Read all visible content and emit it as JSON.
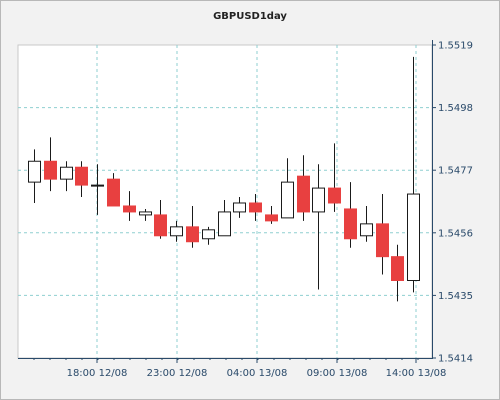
{
  "chart_data": {
    "type": "candlestick",
    "title": "GBPUSD1day",
    "xlabel": "",
    "ylabel": "",
    "ylim": [
      1.5414,
      1.5519
    ],
    "yticks": [
      "1.5519",
      "1.5498",
      "1.5477",
      "1.5456",
      "1.5435",
      "1.5414"
    ],
    "xticks": [
      "18:00 12/08",
      "23:00 12/08",
      "04:00 13/08",
      "09:00 13/08",
      "14:00 13/08"
    ],
    "grid": true,
    "colors": {
      "up": "#ffffff",
      "down": "#e84040",
      "outline": "#1a1a1a",
      "grid": "#8fcfd0",
      "axis": "#2a4a6a"
    },
    "series": [
      {
        "candles": [
          {
            "o": 1.5473,
            "h": 1.5484,
            "l": 1.5466,
            "c": 1.548
          },
          {
            "o": 1.548,
            "h": 1.5488,
            "l": 1.547,
            "c": 1.5474
          },
          {
            "o": 1.5474,
            "h": 1.548,
            "l": 1.547,
            "c": 1.5478
          },
          {
            "o": 1.5478,
            "h": 1.548,
            "l": 1.5468,
            "c": 1.5472
          },
          {
            "o": 1.5472,
            "h": 1.5479,
            "l": 1.5462,
            "c": 1.5472
          },
          {
            "o": 1.5474,
            "h": 1.5476,
            "l": 1.5465,
            "c": 1.5465
          },
          {
            "o": 1.5465,
            "h": 1.547,
            "l": 1.546,
            "c": 1.5463
          },
          {
            "o": 1.5462,
            "h": 1.5464,
            "l": 1.546,
            "c": 1.5463
          },
          {
            "o": 1.5462,
            "h": 1.5467,
            "l": 1.5454,
            "c": 1.5455
          },
          {
            "o": 1.5455,
            "h": 1.546,
            "l": 1.5453,
            "c": 1.5458
          },
          {
            "o": 1.5458,
            "h": 1.5465,
            "l": 1.5451,
            "c": 1.5453
          },
          {
            "o": 1.5454,
            "h": 1.5458,
            "l": 1.5452,
            "c": 1.5457
          },
          {
            "o": 1.5455,
            "h": 1.5467,
            "l": 1.5455,
            "c": 1.5463
          },
          {
            "o": 1.5463,
            "h": 1.5468,
            "l": 1.5461,
            "c": 1.5466
          },
          {
            "o": 1.5466,
            "h": 1.5469,
            "l": 1.546,
            "c": 1.5463
          },
          {
            "o": 1.5462,
            "h": 1.5465,
            "l": 1.5459,
            "c": 1.546
          },
          {
            "o": 1.5461,
            "h": 1.5481,
            "l": 1.5461,
            "c": 1.5473
          },
          {
            "o": 1.5475,
            "h": 1.5482,
            "l": 1.546,
            "c": 1.5463
          },
          {
            "o": 1.5463,
            "h": 1.5479,
            "l": 1.5437,
            "c": 1.5471
          },
          {
            "o": 1.5471,
            "h": 1.5486,
            "l": 1.5463,
            "c": 1.5466
          },
          {
            "o": 1.5464,
            "h": 1.5473,
            "l": 1.5451,
            "c": 1.5454
          },
          {
            "o": 1.5455,
            "h": 1.5465,
            "l": 1.5453,
            "c": 1.5459
          },
          {
            "o": 1.5459,
            "h": 1.5469,
            "l": 1.5442,
            "c": 1.5448
          },
          {
            "o": 1.5448,
            "h": 1.5452,
            "l": 1.5433,
            "c": 1.544
          },
          {
            "o": 1.544,
            "h": 1.5515,
            "l": 1.5436,
            "c": 1.5469
          }
        ]
      }
    ]
  }
}
